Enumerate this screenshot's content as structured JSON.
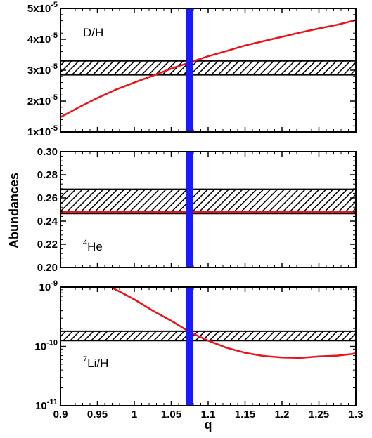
{
  "chart_data": {
    "type": "line",
    "xlabel": "q",
    "ylabel": "Abundances",
    "xlim": [
      0.9,
      1.3
    ],
    "x_ticks": [
      "0.9",
      "0.95",
      "1",
      "1.05",
      "1.1",
      "1.15",
      "1.2",
      "1.25",
      "1.3"
    ],
    "x_tick_values": [
      0.9,
      0.95,
      1.0,
      1.05,
      1.1,
      1.15,
      1.2,
      1.25,
      1.3
    ],
    "vertical_band": {
      "x_range": [
        1.0695,
        1.0795
      ],
      "color": "#1a1aff"
    },
    "line_color": "#e8141b",
    "hatch_color": "#000000",
    "panels": [
      {
        "id": "dh",
        "label": "D/H",
        "label_sup": "",
        "ylim": [
          1e-05,
          5e-05
        ],
        "y_scale": "linear",
        "y_ticks": [
          {
            "value": 1e-05,
            "mant": "1x10",
            "exp": "-5"
          },
          {
            "value": 2e-05,
            "mant": "2x10",
            "exp": "-5"
          },
          {
            "value": 3e-05,
            "mant": "3x10",
            "exp": "-5"
          },
          {
            "value": 4e-05,
            "mant": "4x10",
            "exp": "-5"
          },
          {
            "value": 5e-05,
            "mant": "5x10",
            "exp": "-5"
          }
        ],
        "observed_band": [
          2.85e-05,
          3.3e-05
        ],
        "series": {
          "x": [
            0.9,
            0.925,
            0.95,
            0.975,
            1.0,
            1.025,
            1.05,
            1.075,
            1.1,
            1.125,
            1.15,
            1.175,
            1.2,
            1.225,
            1.25,
            1.275,
            1.3
          ],
          "y": [
            1.48e-05,
            1.8e-05,
            2.1e-05,
            2.37e-05,
            2.6e-05,
            2.82e-05,
            3.05e-05,
            3.25e-05,
            3.45e-05,
            3.62e-05,
            3.8e-05,
            3.94e-05,
            4.08e-05,
            4.22e-05,
            4.35e-05,
            4.47e-05,
            4.62e-05
          ]
        }
      },
      {
        "id": "he",
        "label": "He",
        "label_sup": "4",
        "ylim": [
          0.2,
          0.3
        ],
        "y_scale": "linear",
        "y_ticks": [
          {
            "value": 0.2,
            "text": "0.20"
          },
          {
            "value": 0.22,
            "text": "0.22"
          },
          {
            "value": 0.24,
            "text": "0.24"
          },
          {
            "value": 0.26,
            "text": "0.26"
          },
          {
            "value": 0.28,
            "text": "0.28"
          },
          {
            "value": 0.3,
            "text": "0.30"
          }
        ],
        "observed_band": [
          0.2465,
          0.2675
        ],
        "series": {
          "x": [
            0.9,
            1.0,
            1.1,
            1.2,
            1.3
          ],
          "y": [
            0.2478,
            0.2478,
            0.2478,
            0.2478,
            0.2478
          ]
        }
      },
      {
        "id": "li",
        "label": "Li/H",
        "label_sup": "7",
        "ylim": [
          1e-11,
          1e-09
        ],
        "y_scale": "log",
        "y_ticks": [
          {
            "value": 1e-11,
            "mant": "10",
            "exp": "-11"
          },
          {
            "value": 1e-10,
            "mant": "10",
            "exp": "-10"
          },
          {
            "value": 1e-09,
            "mant": "10",
            "exp": "-9"
          }
        ],
        "observed_band": [
          1.25e-10,
          1.8e-10
        ],
        "series": {
          "x": [
            0.968,
            0.98,
            1.0,
            1.025,
            1.05,
            1.075,
            1.1,
            1.125,
            1.15,
            1.175,
            1.2,
            1.225,
            1.25,
            1.275,
            1.3
          ],
          "y": [
            1e-09,
            8.4e-10,
            6.2e-10,
            4e-10,
            2.7e-10,
            1.75e-10,
            1.25e-10,
            9.5e-11,
            7.8e-11,
            6.9e-11,
            6.5e-11,
            6.4e-11,
            6.8e-11,
            7e-11,
            7.6e-11
          ]
        }
      }
    ]
  }
}
